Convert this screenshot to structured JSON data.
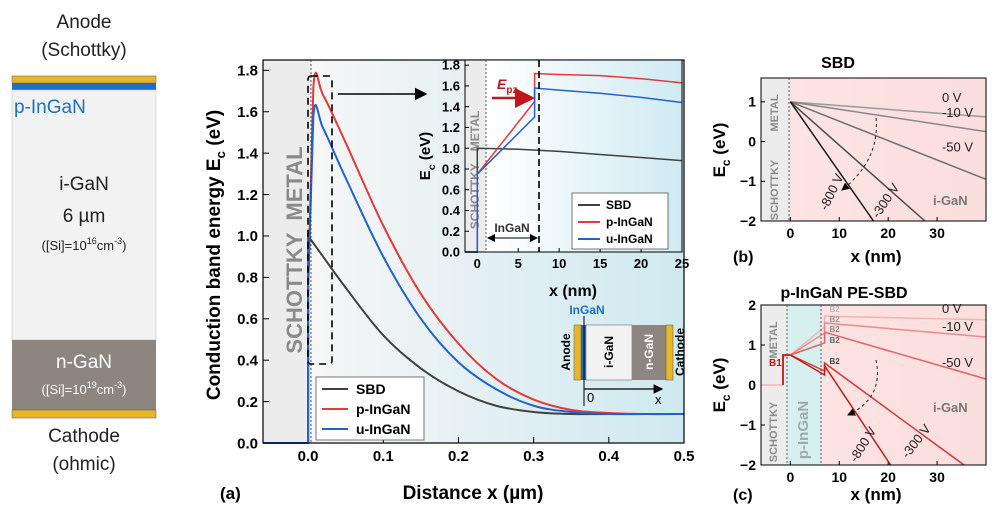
{
  "device": {
    "anode_label": "Anode",
    "anode_sub": "(Schottky)",
    "cathode_label": "Cathode",
    "cathode_sub": "(ohmic)",
    "p_layer": "p-InGaN",
    "i_layer": "i-GaN",
    "i_thickness": "6 µm",
    "i_doping_pre": "([Si]=10",
    "i_doping_exp": "16",
    "i_doping_post": "cm",
    "i_doping_exp2": "-3",
    "i_doping_close": ")",
    "n_layer": "n-GaN",
    "n_doping_pre": "([Si]=10",
    "n_doping_exp": "19",
    "n_doping_post": "cm",
    "n_doping_exp2": "-3",
    "n_doping_close": ")",
    "colors": {
      "metal": "#e8b62c",
      "p_layer": "#1f6fc4",
      "i_layer": "#f2f2f2",
      "n_layer": "#8c8580"
    }
  },
  "labels": {
    "panel_a": "(a)",
    "panel_b": "(b)",
    "panel_c": "(c)",
    "metal": "METAL",
    "schottky": "SCHOTTKY",
    "pingan_region": "p-InGaN",
    "ingan_bracket": "InGaN",
    "epz": "E",
    "epz_sub": "pz",
    "igan_b": "i-GaN",
    "igan_c": "i-GaN",
    "b1": "B1",
    "b2": "B2",
    "schem_ingan": "InGaN",
    "schem_anode": "Anode",
    "schem_igan": "i-GaN",
    "schem_ngan": "n-GaN",
    "schem_cathode": "Cathode",
    "schem_zero": "0",
    "schem_x": "x"
  },
  "chart_data": [
    {
      "id": "a",
      "type": "line",
      "xlabel": "Distance x (µm)",
      "ylabel": "Conduction band energy E",
      "ylabel_sub": "c",
      "ylabel_unit": " (eV)",
      "xlim": [
        -0.06,
        0.5
      ],
      "ylim": [
        0,
        1.85
      ],
      "xticks": [
        0.0,
        0.1,
        0.2,
        0.3,
        0.4,
        0.5
      ],
      "xtick_labels": [
        "0.0",
        "0.1",
        "0.2",
        "0.3",
        "0.4",
        "0.5"
      ],
      "yticks": [
        0.0,
        0.2,
        0.4,
        0.6,
        0.8,
        1.0,
        1.2,
        1.4,
        1.6,
        1.8
      ],
      "ytick_labels": [
        "0.0",
        "0.2",
        "0.4",
        "0.6",
        "0.8",
        "1.0",
        "1.2",
        "1.4",
        "1.6",
        "1.8"
      ],
      "legend": "bottom-left",
      "series": [
        {
          "name": "SBD",
          "color": "#404040",
          "x": [
            -0.06,
            0,
            0,
            0.02,
            0.05,
            0.1,
            0.15,
            0.2,
            0.25,
            0.3,
            0.35,
            0.4,
            0.45,
            0.5
          ],
          "y": [
            0,
            0,
            1.0,
            0.9,
            0.75,
            0.52,
            0.36,
            0.25,
            0.18,
            0.15,
            0.14,
            0.14,
            0.14,
            0.14
          ]
        },
        {
          "name": "p-InGaN",
          "color": "#e8393a",
          "x": [
            -0.06,
            0,
            0,
            0.007,
            0.02,
            0.05,
            0.1,
            0.15,
            0.2,
            0.25,
            0.3,
            0.35,
            0.4,
            0.45,
            0.5
          ],
          "y": [
            0,
            0,
            0.75,
            1.72,
            1.68,
            1.45,
            1.05,
            0.72,
            0.48,
            0.31,
            0.21,
            0.16,
            0.145,
            0.14,
            0.14
          ]
        },
        {
          "name": "u-InGaN",
          "color": "#1f63d1",
          "x": [
            -0.06,
            0,
            0,
            0.007,
            0.02,
            0.05,
            0.1,
            0.15,
            0.2,
            0.25,
            0.3,
            0.35,
            0.4,
            0.45,
            0.5
          ],
          "y": [
            0,
            0,
            0.75,
            1.58,
            1.52,
            1.28,
            0.9,
            0.6,
            0.39,
            0.26,
            0.18,
            0.15,
            0.14,
            0.14,
            0.14
          ]
        }
      ]
    },
    {
      "id": "a_inset",
      "type": "line",
      "xlabel": "x (nm)",
      "ylabel": "E",
      "ylabel_sub": "c",
      "ylabel_unit": " (eV)",
      "xlim": [
        -1.5,
        25
      ],
      "ylim": [
        0,
        1.85
      ],
      "xticks": [
        0,
        5,
        10,
        15,
        20,
        25
      ],
      "xtick_labels": [
        "0",
        "5",
        "10",
        "15",
        "20",
        "25"
      ],
      "yticks": [
        0.0,
        0.2,
        0.4,
        0.6,
        0.8,
        1.0,
        1.2,
        1.4,
        1.6,
        1.8
      ],
      "ytick_labels": [
        "0.0",
        "0.2",
        "0.4",
        "0.6",
        "0.8",
        "1.0",
        "1.2",
        "1.4",
        "1.6",
        "1.8"
      ],
      "legend": "bottom-right",
      "series": [
        {
          "name": "SBD",
          "color": "#404040",
          "x": [
            -1.5,
            0,
            0,
            5,
            10,
            15,
            20,
            25
          ],
          "y": [
            0,
            0,
            1.0,
            0.99,
            0.97,
            0.94,
            0.91,
            0.88
          ]
        },
        {
          "name": "p-InGaN",
          "color": "#e8393a",
          "x": [
            -1.5,
            0,
            0,
            7,
            7,
            10,
            15,
            20,
            25
          ],
          "y": [
            0,
            0,
            0.75,
            1.45,
            1.72,
            1.71,
            1.7,
            1.67,
            1.63
          ]
        },
        {
          "name": "u-InGaN",
          "color": "#1f63d1",
          "x": [
            -1.5,
            0,
            0,
            7,
            7,
            10,
            15,
            20,
            25
          ],
          "y": [
            0,
            0,
            0.75,
            1.3,
            1.58,
            1.56,
            1.53,
            1.49,
            1.44
          ]
        }
      ]
    },
    {
      "id": "b",
      "type": "line",
      "title": "SBD",
      "xlabel": "x (nm)",
      "ylabel": "E",
      "ylabel_sub": "c",
      "ylabel_unit": " (eV)",
      "xlim": [
        -6,
        40
      ],
      "ylim": [
        -2,
        1.6
      ],
      "xticks": [
        0,
        10,
        20,
        30
      ],
      "xtick_labels": [
        "0",
        "10",
        "20",
        "30"
      ],
      "yticks": [
        -2,
        -1,
        0,
        1
      ],
      "ytick_labels": [
        "−2",
        "−1",
        "0",
        "1"
      ],
      "series": [
        {
          "name": "0 V",
          "color": "#9a9a9a",
          "x": [
            0,
            40
          ],
          "y": [
            1.0,
            0.62
          ]
        },
        {
          "name": "-10 V",
          "color": "#888888",
          "x": [
            0,
            40
          ],
          "y": [
            1.0,
            0.25
          ]
        },
        {
          "name": "-50 V",
          "color": "#6f6f6f",
          "x": [
            0,
            40
          ],
          "y": [
            1.0,
            -0.95
          ]
        },
        {
          "name": "-300 V",
          "color": "#4a4a4a",
          "x": [
            0,
            27.5
          ],
          "y": [
            1.0,
            -2.0
          ]
        },
        {
          "name": "-800 V",
          "color": "#1a1a1a",
          "x": [
            0,
            17
          ],
          "y": [
            1.0,
            -2.0
          ]
        }
      ]
    },
    {
      "id": "c",
      "type": "line",
      "title": "p-InGaN PE-SBD",
      "xlabel": "x (nm)",
      "ylabel": "E",
      "ylabel_sub": "c",
      "ylabel_unit": " (eV)",
      "xlim": [
        -6,
        40
      ],
      "ylim": [
        -2,
        2
      ],
      "xticks": [
        0,
        10,
        20,
        30
      ],
      "xtick_labels": [
        "0",
        "10",
        "20",
        "30"
      ],
      "yticks": [
        -2,
        -1,
        0,
        1,
        2
      ],
      "ytick_labels": [
        "−2",
        "−1",
        "0",
        "1",
        "2"
      ],
      "series": [
        {
          "name": "0 V",
          "color": "#f3b3b3",
          "x": [
            -6,
            -1.5,
            -1.5,
            0,
            7,
            7,
            40
          ],
          "y": [
            0,
            0,
            0.7,
            0.75,
            1.45,
            1.72,
            1.63
          ]
        },
        {
          "name": "-10 V",
          "color": "#ee8a8a",
          "x": [
            0,
            7,
            7,
            40
          ],
          "y": [
            0.75,
            1.3,
            1.55,
            1.2
          ]
        },
        {
          "name": "-50 V",
          "color": "#e66060",
          "x": [
            0,
            7,
            7,
            40
          ],
          "y": [
            0.75,
            1.05,
            1.32,
            0.15
          ]
        },
        {
          "name": "-300 V",
          "color": "#d93434",
          "x": [
            0,
            7,
            7,
            35.5
          ],
          "y": [
            0.75,
            0.35,
            0.55,
            -2.0
          ]
        },
        {
          "name": "-800 V",
          "color": "#c41818",
          "x": [
            0,
            7,
            7,
            20.5
          ],
          "y": [
            0.75,
            0.25,
            0.48,
            -2.0
          ]
        }
      ]
    }
  ]
}
